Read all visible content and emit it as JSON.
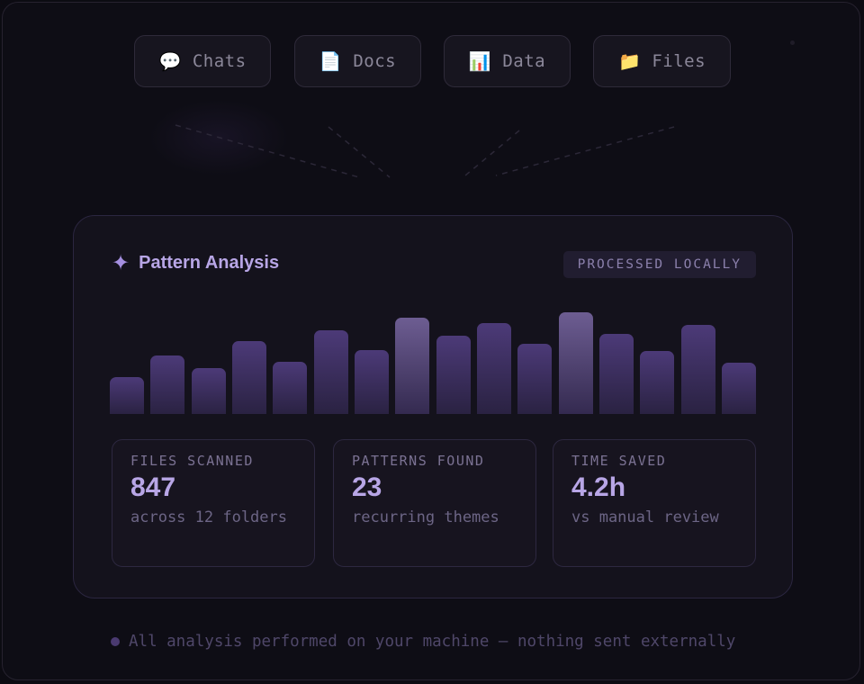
{
  "sources": [
    {
      "icon": "chat-bubble-icon",
      "glyph": "💬",
      "label": "Chats"
    },
    {
      "icon": "document-icon",
      "glyph": "📄",
      "label": "Docs"
    },
    {
      "icon": "bar-chart-icon",
      "glyph": "📊",
      "label": "Data"
    },
    {
      "icon": "folder-icon",
      "glyph": "📁",
      "label": "Files"
    }
  ],
  "card": {
    "title": "Pattern Analysis",
    "title_glyph": "✦",
    "badge": "PROCESSED LOCALLY"
  },
  "bars": [
    {
      "value": 0.36,
      "highlighted": false
    },
    {
      "value": 0.57,
      "highlighted": false
    },
    {
      "value": 0.45,
      "highlighted": false
    },
    {
      "value": 0.71,
      "highlighted": false
    },
    {
      "value": 0.51,
      "highlighted": false
    },
    {
      "value": 0.82,
      "highlighted": false
    },
    {
      "value": 0.62,
      "highlighted": false
    },
    {
      "value": 0.94,
      "highlighted": true
    },
    {
      "value": 0.76,
      "highlighted": false
    },
    {
      "value": 0.89,
      "highlighted": false
    },
    {
      "value": 0.68,
      "highlighted": false
    },
    {
      "value": 0.99,
      "highlighted": true
    },
    {
      "value": 0.78,
      "highlighted": false
    },
    {
      "value": 0.61,
      "highlighted": false
    },
    {
      "value": 0.87,
      "highlighted": false
    },
    {
      "value": 0.5,
      "highlighted": false
    }
  ],
  "stats": [
    {
      "label": "FILES SCANNED",
      "value": "847",
      "sub": "across 12 folders"
    },
    {
      "label": "PATTERNS FOUND",
      "value": "23",
      "sub": "recurring themes"
    },
    {
      "label": "TIME SAVED",
      "value": "4.2h",
      "sub": "vs manual review"
    }
  ],
  "footer": "All analysis performed on your machine — nothing sent externally",
  "colors": {
    "accent": "#b8a6e6",
    "bar": "#4c3a78",
    "bar_highlight": "#6d5d92",
    "background": "#0e0d15"
  }
}
